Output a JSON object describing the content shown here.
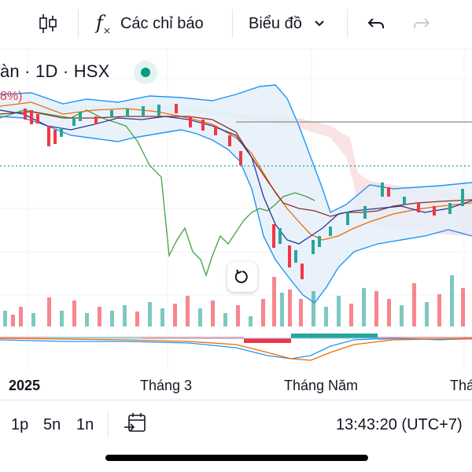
{
  "toolbar": {
    "indicators_label": "Các chỉ báo",
    "chart_type_label": "Biểu đồ",
    "icons": [
      "candles-icon",
      "fx-icon",
      "chevron-down-icon",
      "undo-icon",
      "redo-icon"
    ]
  },
  "legend": {
    "title": "àn · 1D · HSX",
    "change_fragment": "8%)",
    "status_color": "#089981"
  },
  "time_axis": {
    "labels": [
      "2025",
      "Tháng 3",
      "Tháng Năm",
      "Thá"
    ]
  },
  "bottom_bar": {
    "ranges": [
      "1p",
      "5n",
      "1n"
    ],
    "clock": "13:43:20 (UTC+7)"
  },
  "colors": {
    "up": "#26a69a",
    "down": "#f23645",
    "bollinger": "#2962ff",
    "ichimoku_green": "#43a047",
    "ma_orange": "#ef6c00"
  }
}
